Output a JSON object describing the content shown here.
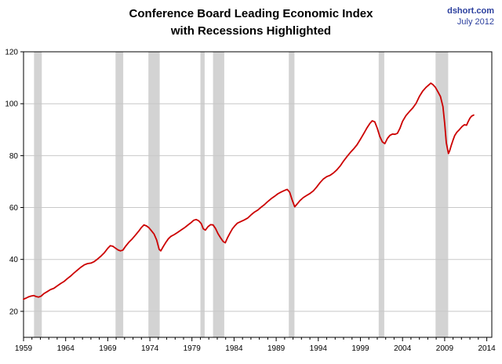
{
  "header": {
    "title_line1": "Conference Board Leading Economic Index",
    "title_line2": "with Recessions Highlighted",
    "source": "dshort.com",
    "date": "July 2012"
  },
  "colors": {
    "line": "#cc0000",
    "recession_band": "#d3d3d3",
    "gridline": "#c8c8c8",
    "axis": "#000000",
    "source_text": "#2b3f9e"
  },
  "chart_data": {
    "type": "line",
    "title": "Conference Board Leading Economic Index with Recessions Highlighted",
    "xlabel": "",
    "ylabel": "",
    "xlim": [
      1959,
      2014.6
    ],
    "ylim": [
      10,
      120
    ],
    "x_ticks": [
      1959,
      1964,
      1969,
      1974,
      1979,
      1984,
      1989,
      1994,
      1999,
      2004,
      2009,
      2014
    ],
    "y_ticks": [
      20,
      40,
      60,
      80,
      100,
      120
    ],
    "grid": "horizontal",
    "legend": "none",
    "recessions": [
      [
        1960.25,
        1961.17
      ],
      [
        1969.92,
        1970.83
      ],
      [
        1973.83,
        1975.17
      ],
      [
        1980.0,
        1980.5
      ],
      [
        1981.5,
        1982.83
      ],
      [
        1990.5,
        1991.17
      ],
      [
        2001.17,
        2001.83
      ],
      [
        2007.92,
        2009.42
      ]
    ],
    "series": [
      {
        "name": "Conference Board Leading Economic Index",
        "points": [
          [
            1959.0,
            24.7
          ],
          [
            1959.3,
            25.1
          ],
          [
            1959.6,
            25.6
          ],
          [
            1959.9,
            25.9
          ],
          [
            1960.2,
            26.1
          ],
          [
            1960.5,
            25.7
          ],
          [
            1960.8,
            25.5
          ],
          [
            1961.1,
            25.9
          ],
          [
            1961.4,
            26.8
          ],
          [
            1961.8,
            27.6
          ],
          [
            1962.2,
            28.4
          ],
          [
            1962.6,
            28.9
          ],
          [
            1963.0,
            29.8
          ],
          [
            1963.4,
            30.7
          ],
          [
            1963.8,
            31.5
          ],
          [
            1964.2,
            32.6
          ],
          [
            1964.6,
            33.6
          ],
          [
            1965.0,
            34.8
          ],
          [
            1965.4,
            35.9
          ],
          [
            1965.8,
            37.0
          ],
          [
            1966.2,
            37.9
          ],
          [
            1966.6,
            38.4
          ],
          [
            1967.0,
            38.6
          ],
          [
            1967.4,
            39.2
          ],
          [
            1967.8,
            40.2
          ],
          [
            1968.2,
            41.3
          ],
          [
            1968.6,
            42.6
          ],
          [
            1969.0,
            44.3
          ],
          [
            1969.3,
            45.3
          ],
          [
            1969.6,
            45.1
          ],
          [
            1969.9,
            44.4
          ],
          [
            1970.2,
            43.7
          ],
          [
            1970.5,
            43.3
          ],
          [
            1970.8,
            43.6
          ],
          [
            1971.1,
            45.0
          ],
          [
            1971.5,
            46.6
          ],
          [
            1971.9,
            47.9
          ],
          [
            1972.3,
            49.4
          ],
          [
            1972.7,
            51.0
          ],
          [
            1973.0,
            52.3
          ],
          [
            1973.3,
            53.3
          ],
          [
            1973.6,
            52.9
          ],
          [
            1973.9,
            52.2
          ],
          [
            1974.2,
            51.0
          ],
          [
            1974.5,
            49.8
          ],
          [
            1974.8,
            47.5
          ],
          [
            1975.1,
            43.9
          ],
          [
            1975.3,
            43.3
          ],
          [
            1975.6,
            45.0
          ],
          [
            1975.9,
            46.6
          ],
          [
            1976.2,
            48.0
          ],
          [
            1976.5,
            48.9
          ],
          [
            1976.9,
            49.6
          ],
          [
            1977.3,
            50.4
          ],
          [
            1977.7,
            51.3
          ],
          [
            1978.1,
            52.2
          ],
          [
            1978.5,
            53.2
          ],
          [
            1978.9,
            54.2
          ],
          [
            1979.2,
            55.1
          ],
          [
            1979.5,
            55.4
          ],
          [
            1979.8,
            54.9
          ],
          [
            1980.1,
            53.8
          ],
          [
            1980.35,
            51.8
          ],
          [
            1980.6,
            51.3
          ],
          [
            1980.9,
            52.6
          ],
          [
            1981.2,
            53.4
          ],
          [
            1981.5,
            53.3
          ],
          [
            1981.8,
            51.9
          ],
          [
            1982.1,
            49.9
          ],
          [
            1982.4,
            48.3
          ],
          [
            1982.7,
            46.9
          ],
          [
            1982.95,
            46.4
          ],
          [
            1983.2,
            48.2
          ],
          [
            1983.5,
            50.1
          ],
          [
            1983.8,
            51.8
          ],
          [
            1984.1,
            53.0
          ],
          [
            1984.4,
            54.0
          ],
          [
            1984.8,
            54.6
          ],
          [
            1985.2,
            55.2
          ],
          [
            1985.6,
            55.9
          ],
          [
            1986.0,
            57.1
          ],
          [
            1986.4,
            58.2
          ],
          [
            1986.8,
            59.0
          ],
          [
            1987.2,
            60.1
          ],
          [
            1987.6,
            61.1
          ],
          [
            1988.0,
            62.3
          ],
          [
            1988.4,
            63.4
          ],
          [
            1988.8,
            64.3
          ],
          [
            1989.2,
            65.3
          ],
          [
            1989.6,
            66.0
          ],
          [
            1990.0,
            66.6
          ],
          [
            1990.3,
            67.0
          ],
          [
            1990.6,
            65.9
          ],
          [
            1990.9,
            62.9
          ],
          [
            1991.2,
            60.3
          ],
          [
            1991.5,
            61.4
          ],
          [
            1991.8,
            62.6
          ],
          [
            1992.2,
            63.8
          ],
          [
            1992.6,
            64.6
          ],
          [
            1993.0,
            65.4
          ],
          [
            1993.4,
            66.4
          ],
          [
            1993.8,
            67.9
          ],
          [
            1994.2,
            69.6
          ],
          [
            1994.6,
            71.0
          ],
          [
            1995.0,
            71.9
          ],
          [
            1995.4,
            72.4
          ],
          [
            1995.8,
            73.3
          ],
          [
            1996.2,
            74.5
          ],
          [
            1996.6,
            76.0
          ],
          [
            1997.0,
            77.9
          ],
          [
            1997.4,
            79.6
          ],
          [
            1997.8,
            81.2
          ],
          [
            1998.2,
            82.6
          ],
          [
            1998.6,
            84.2
          ],
          [
            1999.0,
            86.3
          ],
          [
            1999.4,
            88.5
          ],
          [
            1999.8,
            90.8
          ],
          [
            2000.1,
            92.3
          ],
          [
            2000.4,
            93.4
          ],
          [
            2000.7,
            93.0
          ],
          [
            2001.0,
            90.5
          ],
          [
            2001.3,
            87.4
          ],
          [
            2001.6,
            85.3
          ],
          [
            2001.9,
            84.6
          ],
          [
            2002.2,
            86.6
          ],
          [
            2002.5,
            87.8
          ],
          [
            2002.8,
            88.3
          ],
          [
            2003.1,
            88.2
          ],
          [
            2003.4,
            88.6
          ],
          [
            2003.7,
            90.6
          ],
          [
            2004.0,
            93.2
          ],
          [
            2004.4,
            95.4
          ],
          [
            2004.8,
            96.9
          ],
          [
            2005.2,
            98.3
          ],
          [
            2005.6,
            100.1
          ],
          [
            2006.0,
            102.8
          ],
          [
            2006.4,
            104.9
          ],
          [
            2006.8,
            106.3
          ],
          [
            2007.1,
            107.2
          ],
          [
            2007.35,
            107.9
          ],
          [
            2007.6,
            107.4
          ],
          [
            2007.9,
            106.3
          ],
          [
            2008.2,
            104.6
          ],
          [
            2008.5,
            102.8
          ],
          [
            2008.8,
            98.9
          ],
          [
            2009.0,
            92.5
          ],
          [
            2009.2,
            84.9
          ],
          [
            2009.45,
            80.8
          ],
          [
            2009.6,
            81.9
          ],
          [
            2009.8,
            84.1
          ],
          [
            2010.0,
            86.0
          ],
          [
            2010.2,
            87.8
          ],
          [
            2010.45,
            89.0
          ],
          [
            2010.7,
            89.8
          ],
          [
            2010.9,
            90.6
          ],
          [
            2011.1,
            91.3
          ],
          [
            2011.35,
            91.9
          ],
          [
            2011.6,
            91.7
          ],
          [
            2011.8,
            93.1
          ],
          [
            2012.0,
            94.4
          ],
          [
            2012.2,
            95.2
          ],
          [
            2012.45,
            95.6
          ]
        ]
      }
    ]
  }
}
